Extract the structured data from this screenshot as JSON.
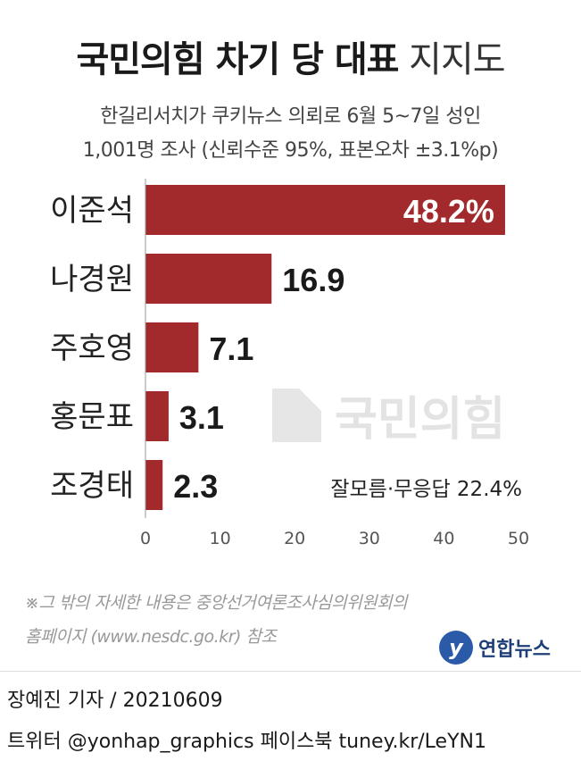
{
  "header": {
    "title_bold": "국민의힘 차기 당 대표",
    "title_light": "지지도",
    "subtitle_1": "한길리서치가 쿠키뉴스 의뢰로 6월 5~7일 성인",
    "subtitle_2": "1,001명 조사 (신뢰수준 95%, 표본오차 ±3.1%p)"
  },
  "chart_data": {
    "type": "bar",
    "orientation": "horizontal",
    "categories": [
      "이준석",
      "나경원",
      "주호영",
      "홍문표",
      "조경태"
    ],
    "values": [
      48.2,
      16.9,
      7.1,
      3.1,
      2.3
    ],
    "value_labels": [
      "48.2%",
      "16.9",
      "7.1",
      "3.1",
      "2.3"
    ],
    "xlim": [
      0,
      50
    ],
    "x_ticks": [
      "0",
      "10",
      "20",
      "30",
      "40",
      "50"
    ],
    "bar_color": "#a2292c",
    "annotation": "잘모름·무응답 22.4%",
    "watermark": "국민의힘"
  },
  "note": {
    "line_1": "※그 밖의 자세한 내용은 중앙선거여론조사심의위원회의",
    "line_2": "홈페이지 (www.nesdc.go.kr) 참조"
  },
  "logo": {
    "name": "연합뉴스",
    "mark": "y",
    "color": "#2b5aa8"
  },
  "footer": {
    "line_1": "장예진 기자 / 20210609",
    "line_2": "트위터 @yonhap_graphics  페이스북 tuney.kr/LeYN1"
  }
}
